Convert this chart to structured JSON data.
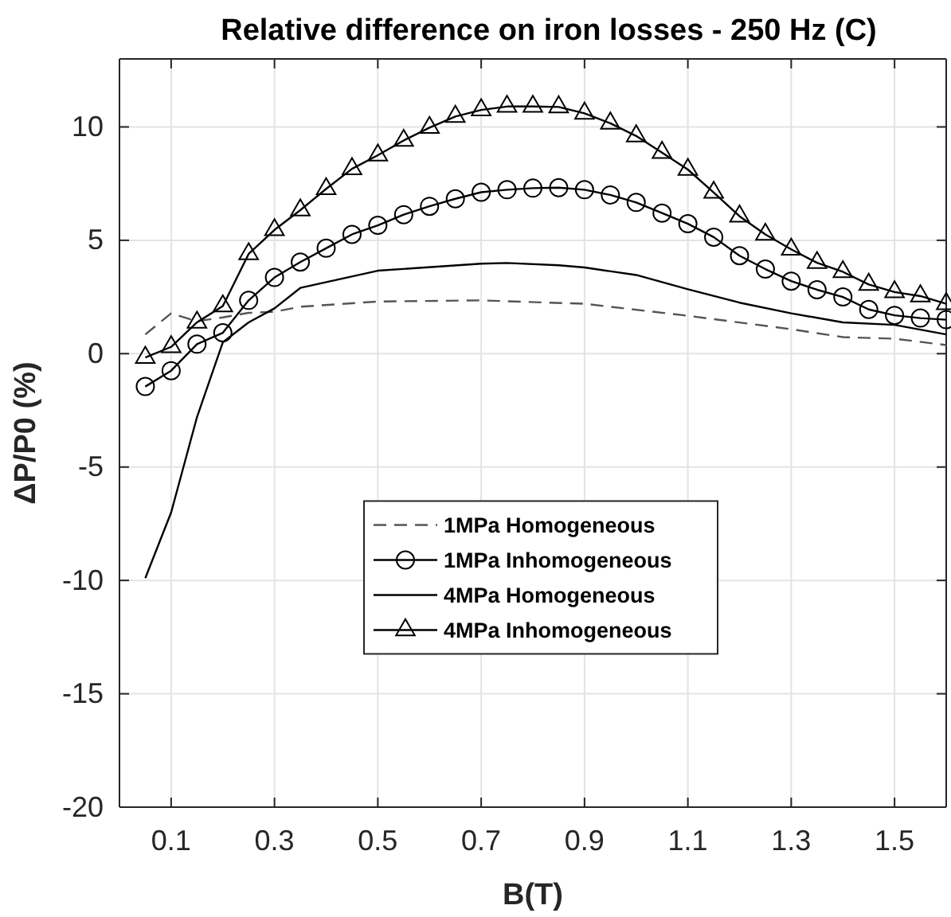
{
  "chart_data": {
    "type": "line",
    "title": "Relative difference on iron losses - 250 Hz (C)",
    "xlabel": "B(T)",
    "ylabel": "ΔP/P0 (%)",
    "xlim": [
      0,
      1.6
    ],
    "xticks": [
      0.1,
      0.3,
      0.5,
      0.7,
      0.9,
      1.1,
      1.3,
      1.5
    ],
    "ylim": [
      -20,
      13
    ],
    "yticks": [
      -20,
      -15,
      -10,
      -5,
      0,
      5,
      10
    ],
    "grid": true,
    "legend": "center",
    "series": [
      {
        "name": "1MPa Homogeneous",
        "color": "#555555",
        "line_style": "dashed",
        "marker": "none",
        "x": [
          0.05,
          0.1,
          0.15,
          0.2,
          0.25,
          0.3,
          0.35,
          0.5,
          0.7,
          0.9,
          1.1,
          1.3,
          1.4,
          1.5,
          1.6
        ],
        "values": [
          0.85,
          1.78,
          1.43,
          1.6,
          1.8,
          1.85,
          2.07,
          2.3,
          2.35,
          2.2,
          1.67,
          1.08,
          0.73,
          0.66,
          0.38
        ]
      },
      {
        "name": "1MPa Inhomogeneous",
        "color": "#000000",
        "line_style": "solid",
        "marker": "circle",
        "x": [
          0.05,
          0.1,
          0.15,
          0.2,
          0.25,
          0.3,
          0.35,
          0.4,
          0.45,
          0.5,
          0.55,
          0.6,
          0.65,
          0.7,
          0.75,
          0.8,
          0.85,
          0.9,
          0.95,
          1.0,
          1.05,
          1.1,
          1.15,
          1.2,
          1.25,
          1.3,
          1.35,
          1.4,
          1.45,
          1.5,
          1.55,
          1.6
        ],
        "values": [
          -1.45,
          -0.75,
          0.42,
          0.92,
          2.35,
          3.36,
          4.04,
          4.65,
          5.26,
          5.66,
          6.13,
          6.5,
          6.83,
          7.12,
          7.23,
          7.3,
          7.32,
          7.23,
          7.0,
          6.67,
          6.2,
          5.73,
          5.14,
          4.32,
          3.73,
          3.2,
          2.82,
          2.5,
          1.95,
          1.69,
          1.57,
          1.5
        ]
      },
      {
        "name": "4MPa Homogeneous",
        "color": "#000000",
        "line_style": "solid",
        "marker": "none",
        "x": [
          0.05,
          0.1,
          0.15,
          0.2,
          0.25,
          0.3,
          0.35,
          0.5,
          0.7,
          0.75,
          0.85,
          0.9,
          1.0,
          1.1,
          1.2,
          1.3,
          1.4,
          1.5,
          1.6
        ],
        "values": [
          -9.9,
          -7.0,
          -2.8,
          0.5,
          1.38,
          2.0,
          2.9,
          3.66,
          3.97,
          4.0,
          3.9,
          3.8,
          3.47,
          2.84,
          2.25,
          1.78,
          1.38,
          1.27,
          0.85
        ]
      },
      {
        "name": "4MPa Inhomogeneous",
        "color": "#000000",
        "line_style": "solid",
        "marker": "triangle",
        "x": [
          0.05,
          0.1,
          0.15,
          0.2,
          0.25,
          0.3,
          0.35,
          0.4,
          0.45,
          0.5,
          0.55,
          0.6,
          0.65,
          0.7,
          0.75,
          0.8,
          0.85,
          0.9,
          0.95,
          1.0,
          1.05,
          1.1,
          1.15,
          1.2,
          1.25,
          1.3,
          1.35,
          1.4,
          1.45,
          1.5,
          1.55,
          1.6
        ],
        "values": [
          -0.17,
          0.3,
          1.38,
          2.1,
          4.4,
          5.46,
          6.33,
          7.27,
          8.15,
          8.75,
          9.4,
          9.97,
          10.46,
          10.75,
          10.9,
          10.9,
          10.88,
          10.6,
          10.16,
          9.6,
          8.87,
          8.12,
          7.11,
          6.06,
          5.26,
          4.6,
          4.01,
          3.61,
          3.05,
          2.72,
          2.54,
          2.2
        ]
      }
    ]
  }
}
